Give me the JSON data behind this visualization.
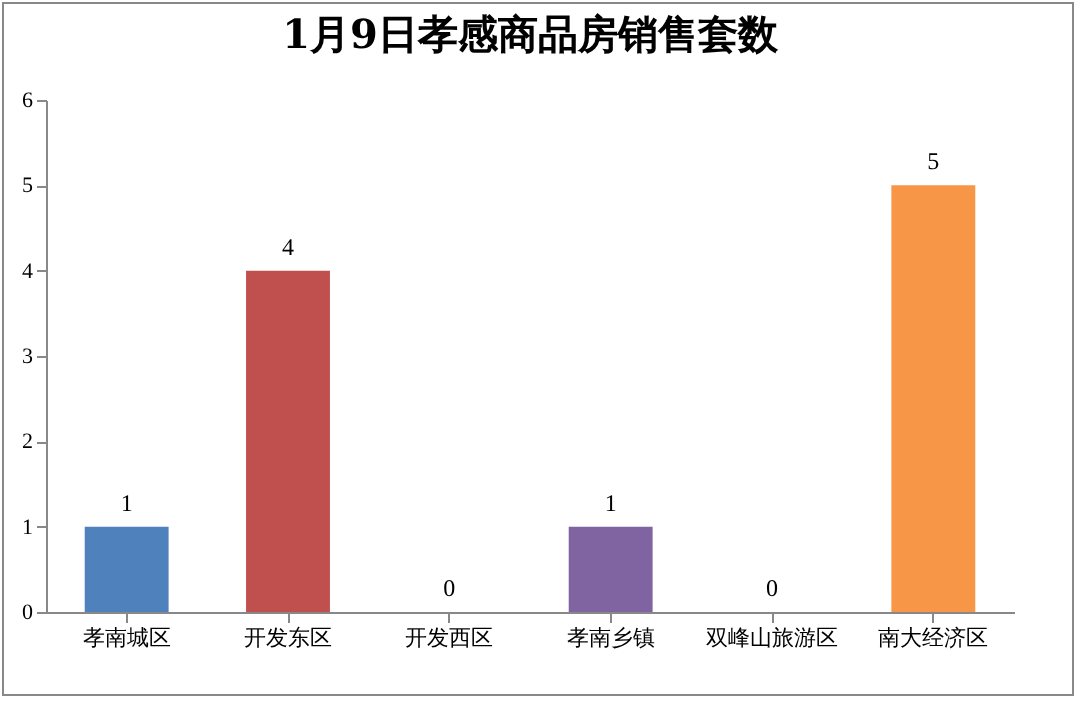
{
  "chart_data": {
    "type": "bar",
    "title": "1月9日孝感商品房销售套数",
    "categories": [
      "孝南城区",
      "开发东区",
      "开发西区",
      "孝南乡镇",
      "双峰山旅游区",
      "南大经济区"
    ],
    "values": [
      1,
      4,
      0,
      1,
      0,
      5
    ],
    "colors": [
      "#4f81bd",
      "#c0504d",
      "#9bbb59",
      "#8064a2",
      "#4bacc6",
      "#f79646"
    ],
    "ylim": [
      0,
      6
    ],
    "yticks": [
      0,
      1,
      2,
      3,
      4,
      5,
      6
    ],
    "data_labels": true
  }
}
